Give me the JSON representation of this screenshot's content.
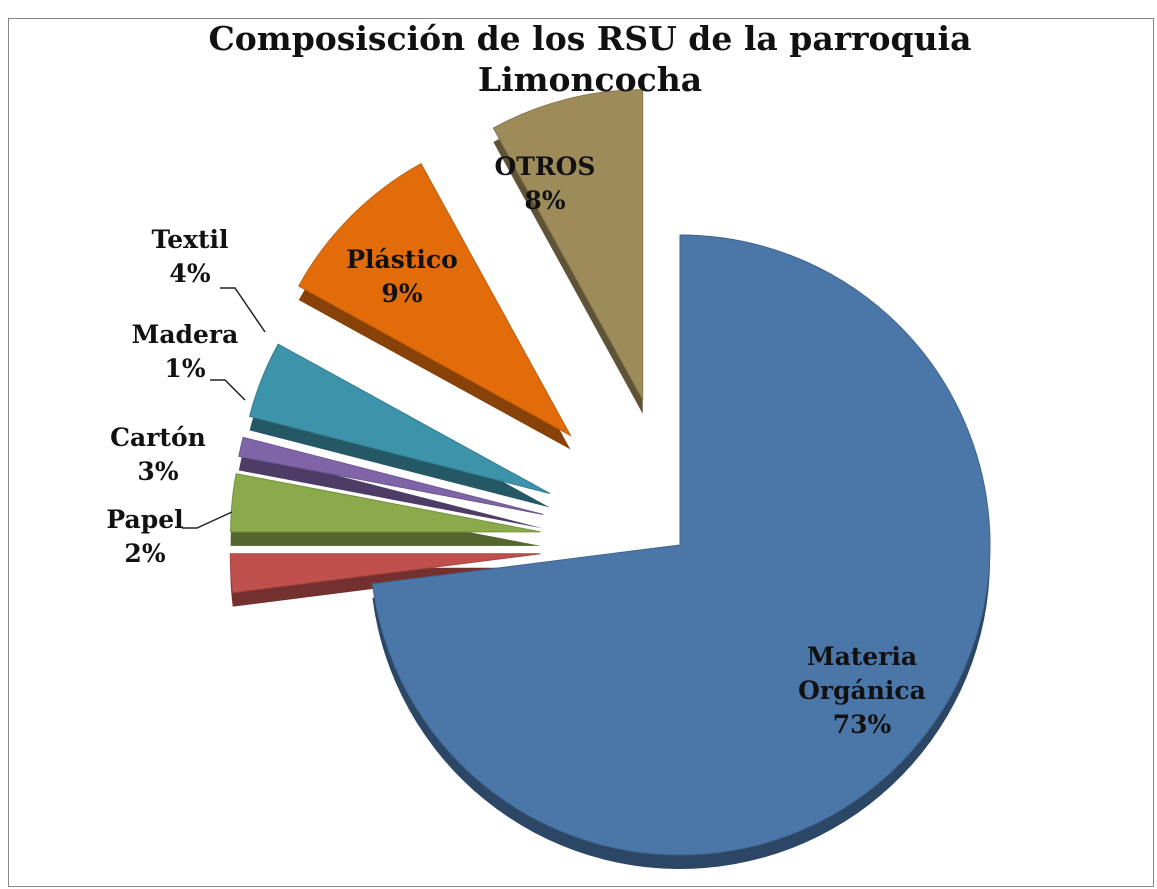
{
  "chart_data": {
    "type": "pie",
    "title": "Composisción de los RSU de la parroquia Limoncocha",
    "categories": [
      "Materia Orgánica",
      "Papel",
      "Cartón",
      "Madera",
      "Textil",
      "Plástico",
      "OTROS"
    ],
    "values": [
      73,
      2,
      3,
      1,
      4,
      9,
      8
    ],
    "value_labels": [
      "73%",
      "2%",
      "3%",
      "1%",
      "4%",
      "9%",
      "8%"
    ],
    "colors": [
      "#4a76a8",
      "#c0504d",
      "#8aaa4b",
      "#8064a8",
      "#3d93a9",
      "#e36c0a",
      "#9d8b5a"
    ]
  }
}
